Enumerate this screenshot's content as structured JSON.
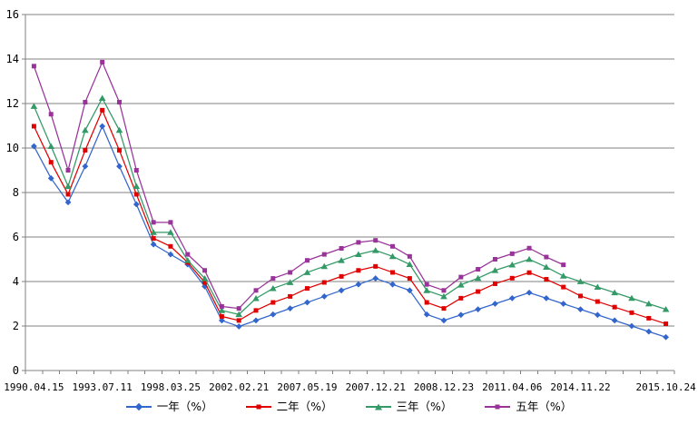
{
  "chart_data": {
    "type": "line",
    "title": "",
    "grid": true,
    "legend_position": "bottom",
    "n_points": 38,
    "y_axis": {
      "min": 0,
      "max": 16,
      "step": 2,
      "tick_labels": [
        "0",
        "2",
        "4",
        "6",
        "8",
        "10",
        "12",
        "14",
        "16"
      ]
    },
    "x_tick_labels": [
      {
        "index": 0,
        "label": "1990.04.15"
      },
      {
        "index": 4,
        "label": "1993.07.11"
      },
      {
        "index": 8,
        "label": "1998.03.25"
      },
      {
        "index": 12,
        "label": "2002.02.21"
      },
      {
        "index": 16,
        "label": "2007.05.19"
      },
      {
        "index": 20,
        "label": "2007.12.21"
      },
      {
        "index": 24,
        "label": "2008.12.23"
      },
      {
        "index": 28,
        "label": "2011.04.06"
      },
      {
        "index": 32,
        "label": "2014.11.22"
      },
      {
        "index": 37,
        "label": "2015.10.24"
      }
    ],
    "series": [
      {
        "label": "一年（%）",
        "color": "#3366CC",
        "marker": "diamond",
        "values": [
          10.08,
          8.64,
          7.56,
          9.18,
          10.98,
          9.18,
          7.47,
          5.67,
          5.22,
          4.77,
          3.78,
          2.25,
          1.98,
          2.25,
          2.52,
          2.79,
          3.06,
          3.33,
          3.6,
          3.87,
          4.14,
          3.87,
          3.6,
          2.52,
          2.25,
          2.5,
          2.75,
          3.0,
          3.25,
          3.5,
          3.25,
          3.0,
          2.75,
          2.5,
          2.25,
          2.0,
          1.75,
          1.5
        ]
      },
      {
        "label": "二年（%）",
        "color": "#E00000",
        "marker": "square",
        "values": [
          10.98,
          9.36,
          7.92,
          9.9,
          11.7,
          9.9,
          7.92,
          5.94,
          5.58,
          4.86,
          3.96,
          2.43,
          2.25,
          2.7,
          3.06,
          3.33,
          3.69,
          3.96,
          4.23,
          4.5,
          4.68,
          4.41,
          4.14,
          3.06,
          2.79,
          3.25,
          3.55,
          3.9,
          4.15,
          4.4,
          4.1,
          3.75,
          3.35,
          3.1,
          2.85,
          2.6,
          2.35,
          2.1
        ]
      },
      {
        "label": "三年（%）",
        "color": "#339966",
        "marker": "triangle",
        "values": [
          11.88,
          10.08,
          8.28,
          10.8,
          12.24,
          10.8,
          8.28,
          6.21,
          6.21,
          4.95,
          4.14,
          2.7,
          2.52,
          3.24,
          3.69,
          3.96,
          4.41,
          4.68,
          4.95,
          5.22,
          5.4,
          5.13,
          4.77,
          3.6,
          3.33,
          3.85,
          4.15,
          4.5,
          4.75,
          5.0,
          4.65,
          4.25,
          4.0,
          3.75,
          3.5,
          3.25,
          3.0,
          2.75
        ]
      },
      {
        "label": "五年（%）",
        "color": "#993399",
        "marker": "square",
        "values": [
          13.68,
          11.52,
          9.0,
          12.06,
          13.86,
          12.06,
          9.0,
          6.66,
          6.66,
          5.22,
          4.5,
          2.88,
          2.79,
          3.6,
          4.14,
          4.41,
          4.95,
          5.22,
          5.49,
          5.76,
          5.85,
          5.58,
          5.13,
          3.87,
          3.6,
          4.2,
          4.55,
          5.0,
          5.25,
          5.5,
          5.1,
          4.75,
          null,
          null,
          null,
          null,
          null,
          null
        ]
      }
    ]
  },
  "colors": {
    "background": "#FFFFFF",
    "grid": "#808080",
    "axis": "#808080",
    "text": "#000000"
  }
}
